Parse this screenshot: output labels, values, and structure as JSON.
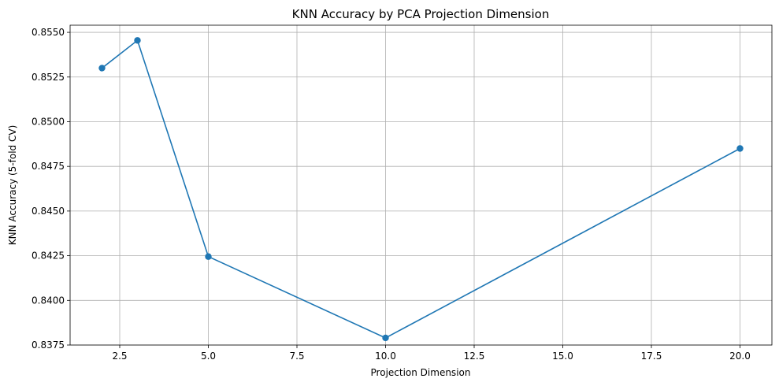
{
  "chart_data": {
    "type": "line",
    "title": "KNN Accuracy by PCA Projection Dimension",
    "xlabel": "Projection Dimension",
    "ylabel": "KNN Accuracy (5-fold CV)",
    "x": [
      2,
      3,
      5,
      10,
      20
    ],
    "series": [
      {
        "values": [
          0.853,
          0.85455,
          0.84245,
          0.8379,
          0.8485
        ]
      }
    ],
    "xlim": [
      1.1,
      20.9
    ],
    "ylim": [
      0.8375,
      0.8554
    ],
    "xticks": [
      2.5,
      5.0,
      7.5,
      10.0,
      12.5,
      15.0,
      17.5,
      20.0
    ],
    "xtick_labels": [
      "2.5",
      "5.0",
      "7.5",
      "10.0",
      "12.5",
      "15.0",
      "17.5",
      "20.0"
    ],
    "yticks": [
      0.8375,
      0.84,
      0.8425,
      0.845,
      0.8475,
      0.85,
      0.8525,
      0.855
    ],
    "ytick_labels": [
      "0.8375",
      "0.8400",
      "0.8425",
      "0.8450",
      "0.8475",
      "0.8500",
      "0.8525",
      "0.8550"
    ],
    "grid": true,
    "marker": "circle",
    "color": "#1f77b4"
  }
}
